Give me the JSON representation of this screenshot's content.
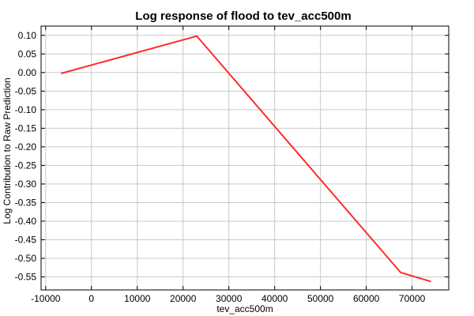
{
  "chart_data": {
    "type": "line",
    "title": "Log response of flood to tev_acc500m",
    "xlabel": "tev_acc500m",
    "ylabel": "Log Contribution to Raw Prediction",
    "xlim": [
      -11000,
      78000
    ],
    "ylim": [
      -0.585,
      0.125
    ],
    "xticks": [
      -10000,
      0,
      10000,
      20000,
      30000,
      40000,
      50000,
      60000,
      70000
    ],
    "yticks": [
      0.1,
      0.05,
      0.0,
      -0.05,
      -0.1,
      -0.15,
      -0.2,
      -0.25,
      -0.3,
      -0.35,
      -0.4,
      -0.45,
      -0.5,
      -0.55
    ],
    "grid": true,
    "series": [
      {
        "color": "#ff2a2a",
        "x": [
          -6500,
          23000,
          67500,
          74000
        ],
        "y": [
          -0.002,
          0.098,
          -0.538,
          -0.562
        ]
      }
    ]
  }
}
